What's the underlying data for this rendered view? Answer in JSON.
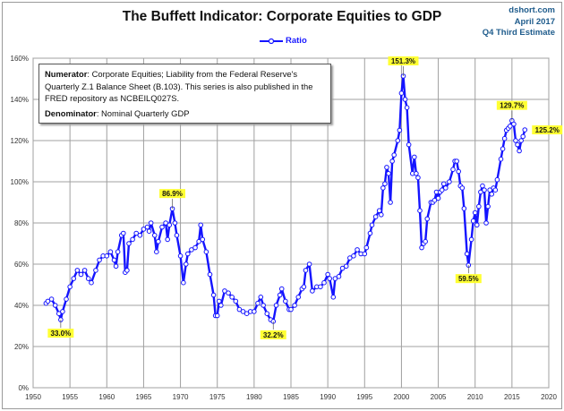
{
  "header": {
    "title": "The Buffett Indicator: Corporate Equities to GDP",
    "source_lines": [
      "dshort.com",
      "April 2017",
      "Q4 Third Estimate"
    ]
  },
  "note": {
    "numerator_label": "Numerator",
    "numerator_text": ": Corporate Equities; Liability from the Federal Reserve's Quarterly Z.1 Balance Sheet (B.103). This series is also published in the FRED repository as NCBEILQ027S.",
    "denominator_label": "Denominator",
    "denominator_text": ": Nominal Quarterly GDP"
  },
  "chart_data": {
    "type": "line",
    "title": "The Buffett Indicator: Corporate Equities to GDP",
    "xlim": [
      1950,
      2020
    ],
    "ylim": [
      0,
      160
    ],
    "x_ticks": [
      "1950",
      "1955",
      "1960",
      "1965",
      "1970",
      "1975",
      "1980",
      "1985",
      "1990",
      "1995",
      "2000",
      "2005",
      "2010",
      "2015",
      "2020"
    ],
    "y_ticks": [
      "0%",
      "20%",
      "40%",
      "60%",
      "80%",
      "100%",
      "120%",
      "140%",
      "160%"
    ],
    "grid": true,
    "legend_placement": "top-center",
    "colors": {
      "line": "#1414ff",
      "marker_fill": "#ffffff",
      "label_bg": "#ffff33"
    },
    "series": [
      {
        "name": "Ratio",
        "points": [
          [
            1951.75,
            41
          ],
          [
            1952,
            42
          ],
          [
            1952.5,
            43
          ],
          [
            1953,
            40
          ],
          [
            1953.5,
            36
          ],
          [
            1953.75,
            33
          ],
          [
            1954,
            37
          ],
          [
            1954.5,
            43
          ],
          [
            1955,
            49
          ],
          [
            1955.5,
            53
          ],
          [
            1956,
            57
          ],
          [
            1956.5,
            55
          ],
          [
            1957,
            57
          ],
          [
            1957.5,
            53
          ],
          [
            1957.9,
            51
          ],
          [
            1958.5,
            57
          ],
          [
            1959,
            62
          ],
          [
            1959.5,
            64
          ],
          [
            1960,
            64
          ],
          [
            1960.5,
            66
          ],
          [
            1961,
            62
          ],
          [
            1961.25,
            59
          ],
          [
            1961.5,
            66
          ],
          [
            1962,
            74
          ],
          [
            1962.25,
            75
          ],
          [
            1962.5,
            56
          ],
          [
            1962.75,
            57
          ],
          [
            1963,
            70
          ],
          [
            1963.5,
            72
          ],
          [
            1964,
            75
          ],
          [
            1964.5,
            74
          ],
          [
            1965,
            77
          ],
          [
            1965.5,
            78
          ],
          [
            1965.75,
            76
          ],
          [
            1966,
            80
          ],
          [
            1966.5,
            74
          ],
          [
            1966.75,
            66
          ],
          [
            1967,
            71
          ],
          [
            1967.5,
            78
          ],
          [
            1968,
            80
          ],
          [
            1968.25,
            72
          ],
          [
            1968.5,
            79
          ],
          [
            1968.9,
            86.9
          ],
          [
            1969.25,
            80
          ],
          [
            1969.5,
            74
          ],
          [
            1970,
            64
          ],
          [
            1970.4,
            51
          ],
          [
            1970.75,
            60
          ],
          [
            1971,
            65
          ],
          [
            1971.5,
            67
          ],
          [
            1972,
            68
          ],
          [
            1972.5,
            71
          ],
          [
            1972.75,
            79
          ],
          [
            1973,
            72
          ],
          [
            1973.5,
            66
          ],
          [
            1974,
            55
          ],
          [
            1974.5,
            45
          ],
          [
            1974.75,
            35
          ],
          [
            1975,
            35
          ],
          [
            1975.25,
            42
          ],
          [
            1975.5,
            40
          ],
          [
            1976,
            47
          ],
          [
            1976.5,
            46
          ],
          [
            1977,
            44
          ],
          [
            1977.5,
            42
          ],
          [
            1978,
            38
          ],
          [
            1978.5,
            37
          ],
          [
            1979,
            36
          ],
          [
            1979.5,
            37
          ],
          [
            1980,
            37
          ],
          [
            1980.5,
            41
          ],
          [
            1980.9,
            44
          ],
          [
            1981.25,
            40
          ],
          [
            1981.75,
            36
          ],
          [
            1982.25,
            33
          ],
          [
            1982.6,
            32.2
          ],
          [
            1983,
            40
          ],
          [
            1983.5,
            45
          ],
          [
            1983.75,
            48
          ],
          [
            1984.25,
            42
          ],
          [
            1984.75,
            38
          ],
          [
            1985,
            38
          ],
          [
            1985.5,
            40
          ],
          [
            1986,
            44
          ],
          [
            1986.5,
            48
          ],
          [
            1986.75,
            49
          ],
          [
            1987,
            57
          ],
          [
            1987.5,
            60
          ],
          [
            1987.9,
            47
          ],
          [
            1988.5,
            49
          ],
          [
            1989,
            49
          ],
          [
            1989.5,
            51
          ],
          [
            1990,
            55
          ],
          [
            1990.25,
            53
          ],
          [
            1990.75,
            44
          ],
          [
            1991,
            53
          ],
          [
            1991.5,
            54
          ],
          [
            1992,
            58
          ],
          [
            1992.5,
            59
          ],
          [
            1993,
            63
          ],
          [
            1993.5,
            64
          ],
          [
            1994,
            67
          ],
          [
            1994.5,
            65
          ],
          [
            1995,
            65
          ],
          [
            1995.25,
            68
          ],
          [
            1995.75,
            75
          ],
          [
            1996,
            79
          ],
          [
            1996.5,
            83
          ],
          [
            1997,
            86
          ],
          [
            1997.25,
            84
          ],
          [
            1997.5,
            97
          ],
          [
            1997.75,
            99
          ],
          [
            1998,
            107
          ],
          [
            1998.25,
            104
          ],
          [
            1998.5,
            90
          ],
          [
            1998.75,
            110
          ],
          [
            1999,
            113
          ],
          [
            1999.5,
            120
          ],
          [
            1999.75,
            125
          ],
          [
            2000,
            143
          ],
          [
            2000.25,
            151.3
          ],
          [
            2000.5,
            140
          ],
          [
            2000.75,
            136
          ],
          [
            2001,
            118
          ],
          [
            2001.5,
            104
          ],
          [
            2001.75,
            112
          ],
          [
            2002,
            104
          ],
          [
            2002.25,
            102
          ],
          [
            2002.5,
            86
          ],
          [
            2002.75,
            68
          ],
          [
            2003,
            70
          ],
          [
            2003.25,
            71
          ],
          [
            2003.5,
            82
          ],
          [
            2004,
            90
          ],
          [
            2004.25,
            90
          ],
          [
            2004.5,
            91
          ],
          [
            2004.75,
            95
          ],
          [
            2005,
            92
          ],
          [
            2005.25,
            95
          ],
          [
            2005.5,
            96
          ],
          [
            2005.75,
            99
          ],
          [
            2006,
            97
          ],
          [
            2006.5,
            100
          ],
          [
            2007,
            106
          ],
          [
            2007.25,
            110
          ],
          [
            2007.5,
            110
          ],
          [
            2007.75,
            105
          ],
          [
            2008,
            98
          ],
          [
            2008.25,
            97
          ],
          [
            2008.5,
            87
          ],
          [
            2008.9,
            65
          ],
          [
            2009.1,
            59.5
          ],
          [
            2009.5,
            72
          ],
          [
            2009.75,
            81
          ],
          [
            2010,
            85
          ],
          [
            2010.25,
            79
          ],
          [
            2010.5,
            88
          ],
          [
            2010.75,
            95
          ],
          [
            2011,
            98
          ],
          [
            2011.25,
            96
          ],
          [
            2011.5,
            80
          ],
          [
            2011.75,
            88
          ],
          [
            2012,
            96
          ],
          [
            2012.25,
            94
          ],
          [
            2012.5,
            97
          ],
          [
            2012.75,
            96
          ],
          [
            2013,
            101
          ],
          [
            2013.5,
            111
          ],
          [
            2013.75,
            116
          ],
          [
            2014,
            121
          ],
          [
            2014.25,
            125
          ],
          [
            2014.5,
            126
          ],
          [
            2014.75,
            127
          ],
          [
            2015,
            129.7
          ],
          [
            2015.25,
            128
          ],
          [
            2015.5,
            120
          ],
          [
            2015.75,
            118
          ],
          [
            2016,
            115
          ],
          [
            2016.25,
            120
          ],
          [
            2016.5,
            122
          ],
          [
            2016.75,
            125.2
          ]
        ]
      }
    ],
    "annotations": [
      {
        "x": 1953.75,
        "y": 33,
        "text": "33.0%",
        "position": "below"
      },
      {
        "x": 1968.9,
        "y": 86.9,
        "text": "86.9%",
        "position": "above"
      },
      {
        "x": 1982.6,
        "y": 32.2,
        "text": "32.2%",
        "position": "below"
      },
      {
        "x": 2000.25,
        "y": 151.3,
        "text": "151.3%",
        "position": "above"
      },
      {
        "x": 2009.1,
        "y": 59.5,
        "text": "59.5%",
        "position": "below"
      },
      {
        "x": 2015,
        "y": 129.7,
        "text": "129.7%",
        "position": "above"
      },
      {
        "x": 2016.75,
        "y": 125.2,
        "text": "125.2%",
        "position": "right"
      }
    ]
  }
}
